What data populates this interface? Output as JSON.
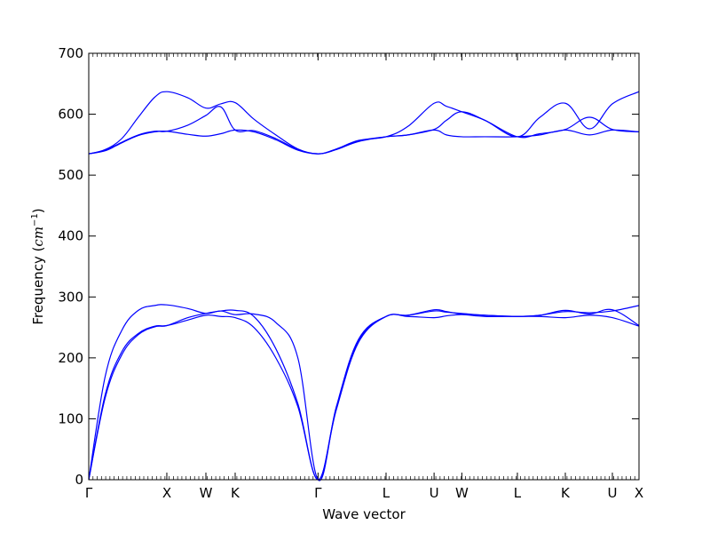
{
  "chart_data": {
    "type": "line",
    "xlabel": "Wave vector",
    "ylabel": {
      "prefix": "Frequency (",
      "unit_base": "cm",
      "unit_exponent": "−1",
      "suffix": ")"
    },
    "ylim": [
      0,
      700
    ],
    "yticks": [
      "0",
      "100",
      "200",
      "300",
      "400",
      "500",
      "600",
      "700"
    ],
    "xlim": [
      0,
      1
    ],
    "xticks": [
      {
        "label": "Γ",
        "x": 0.0
      },
      {
        "label": "X",
        "x": 0.1419
      },
      {
        "label": "W",
        "x": 0.2129
      },
      {
        "label": "K",
        "x": 0.2661
      },
      {
        "label": "Γ",
        "x": 0.4167
      },
      {
        "label": "L",
        "x": 0.5403
      },
      {
        "label": "U",
        "x": 0.6276
      },
      {
        "label": "W",
        "x": 0.678
      },
      {
        "label": "L",
        "x": 0.779
      },
      {
        "label": "K",
        "x": 0.8661
      },
      {
        "label": "U",
        "x": 0.9516
      },
      {
        "label": "X",
        "x": 1.0
      }
    ],
    "minor_tick_count": 130,
    "grid": false,
    "line_color": "#0000ff",
    "series": [
      {
        "x": [
          0,
          0.03,
          0.06,
          0.09,
          0.12,
          0.1419,
          0.18,
          0.2129,
          0.24,
          0.2661,
          0.3,
          0.34,
          0.38,
          0.4167,
          0.45,
          0.49,
          0.5403,
          0.58,
          0.6276,
          0.65,
          0.678,
          0.72,
          0.779,
          0.82,
          0.8661,
          0.91,
          0.9516,
          1.0
        ],
        "y": [
          0,
          140,
          210,
          240,
          252,
          253,
          262,
          270,
          268,
          266,
          250,
          200,
          120,
          0,
          115,
          225,
          268,
          268,
          266,
          269,
          271,
          268,
          268,
          268,
          266,
          270,
          266,
          252
        ]
      },
      {
        "x": [
          0,
          0.03,
          0.06,
          0.09,
          0.12,
          0.1419,
          0.18,
          0.2129,
          0.24,
          0.2661,
          0.3,
          0.34,
          0.38,
          0.4167,
          0.45,
          0.49,
          0.5403,
          0.58,
          0.6276,
          0.65,
          0.678,
          0.72,
          0.779,
          0.82,
          0.8661,
          0.91,
          0.9516,
          1.0
        ],
        "y": [
          0,
          135,
          205,
          238,
          251,
          253,
          266,
          273,
          277,
          278,
          268,
          215,
          125,
          0,
          118,
          228,
          268,
          270,
          279,
          276,
          272,
          270,
          268,
          270,
          278,
          272,
          279,
          253
        ]
      },
      {
        "x": [
          0,
          0.03,
          0.06,
          0.09,
          0.12,
          0.1419,
          0.18,
          0.2129,
          0.24,
          0.2661,
          0.3,
          0.34,
          0.38,
          0.4167,
          0.45,
          0.49,
          0.5403,
          0.58,
          0.6276,
          0.65,
          0.678,
          0.72,
          0.779,
          0.82,
          0.8661,
          0.91,
          0.9516,
          1.0
        ],
        "y": [
          0,
          170,
          245,
          278,
          286,
          287,
          281,
          273,
          277,
          271,
          272,
          258,
          200,
          0,
          120,
          230,
          268,
          270,
          277,
          275,
          273,
          270,
          268,
          270,
          276,
          274,
          277,
          286
        ]
      },
      {
        "x": [
          0,
          0.03,
          0.06,
          0.09,
          0.12,
          0.1419,
          0.18,
          0.2129,
          0.24,
          0.2661,
          0.3,
          0.34,
          0.38,
          0.4167,
          0.45,
          0.49,
          0.5403,
          0.58,
          0.6276,
          0.65,
          0.678,
          0.72,
          0.779,
          0.82,
          0.8661,
          0.91,
          0.9516,
          1.0
        ],
        "y": [
          535,
          540,
          553,
          565,
          571,
          572,
          567,
          564,
          568,
          574,
          571,
          558,
          541,
          535,
          542,
          555,
          563,
          566,
          574,
          566,
          563,
          563,
          563,
          566,
          574,
          566,
          574,
          571
        ]
      },
      {
        "x": [
          0,
          0.03,
          0.06,
          0.09,
          0.12,
          0.1419,
          0.18,
          0.2129,
          0.24,
          0.2661,
          0.3,
          0.34,
          0.38,
          0.4167,
          0.45,
          0.49,
          0.5403,
          0.58,
          0.6276,
          0.65,
          0.678,
          0.72,
          0.779,
          0.82,
          0.8661,
          0.91,
          0.9516,
          1.0
        ],
        "y": [
          535,
          541,
          554,
          566,
          572,
          572,
          582,
          598,
          612,
          574,
          573,
          560,
          542,
          535,
          542,
          556,
          563,
          566,
          575,
          590,
          604,
          590,
          563,
          568,
          575,
          595,
          575,
          571
        ]
      },
      {
        "x": [
          0,
          0.03,
          0.06,
          0.09,
          0.12,
          0.1419,
          0.18,
          0.2129,
          0.24,
          0.2661,
          0.3,
          0.34,
          0.38,
          0.4167,
          0.45,
          0.49,
          0.5403,
          0.58,
          0.6276,
          0.65,
          0.678,
          0.72,
          0.779,
          0.82,
          0.8661,
          0.91,
          0.9516,
          1.0
        ],
        "y": [
          535,
          542,
          560,
          595,
          628,
          637,
          627,
          610,
          617,
          619,
          592,
          566,
          543,
          535,
          543,
          557,
          563,
          580,
          618,
          613,
          604,
          590,
          563,
          595,
          618,
          576,
          617,
          637
        ]
      }
    ]
  }
}
